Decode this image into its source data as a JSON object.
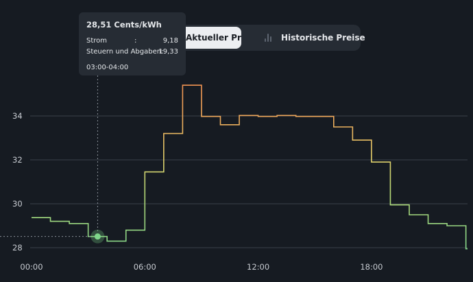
{
  "tabs": {
    "active_label": "Aktueller Preis",
    "history_label": "Historische Preise",
    "history_icon": "bar-chart-icon"
  },
  "tooltip": {
    "title": "28,51 Cents/kWh",
    "strom_label": "Strom",
    "strom_colon": ":",
    "strom_value": "9,18",
    "steuern_label": "Steuern und Abgaben:",
    "steuern_value": "19,33",
    "time": "03:00-04:00"
  },
  "chart_data": {
    "type": "line",
    "step": true,
    "x_unit": "hour",
    "x": [
      0,
      1,
      2,
      3,
      4,
      5,
      6,
      7,
      8,
      9,
      10,
      11,
      12,
      13,
      14,
      15,
      16,
      17,
      18,
      19,
      20,
      21,
      22,
      23
    ],
    "values": [
      29.37,
      29.2,
      29.1,
      28.51,
      28.3,
      28.8,
      31.45,
      33.2,
      35.4,
      33.98,
      33.6,
      34.02,
      33.98,
      34.02,
      33.98,
      33.98,
      33.5,
      32.9,
      31.9,
      29.95,
      29.5,
      29.1,
      29.0,
      27.95
    ],
    "x_ticks": [
      "00:00",
      "06:00",
      "12:00",
      "18:00"
    ],
    "y_ticks": [
      "28",
      "30",
      "32",
      "34"
    ],
    "ylim": [
      27.7,
      36.0
    ],
    "grid": true,
    "highlight_index": 3,
    "colors": {
      "low": "#7fd68a",
      "mid": "#e3cf6a",
      "high": "#ee9a55",
      "grid": "#3a4049",
      "text": "#c8ccd2"
    }
  }
}
